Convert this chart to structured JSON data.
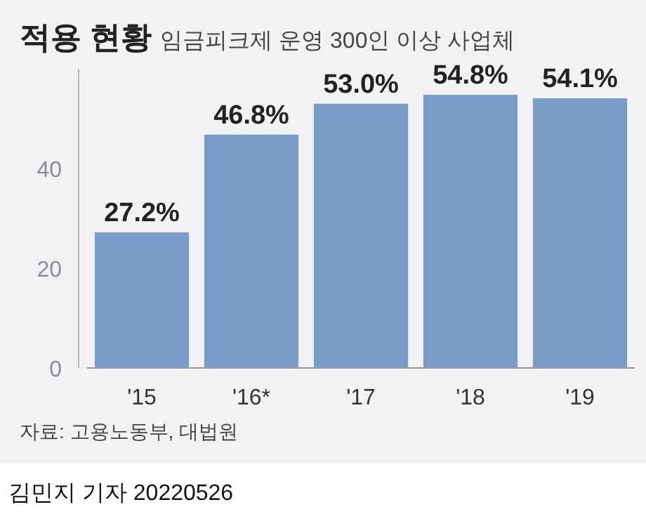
{
  "chart_data": {
    "type": "bar",
    "title": "적용 현황",
    "subtitle": "임금피크제 운영 300인 이상 사업체",
    "categories": [
      "'15",
      "'16*",
      "'17",
      "'18",
      "'19"
    ],
    "values": [
      27.2,
      46.8,
      53.0,
      54.8,
      54.1
    ],
    "value_labels": [
      "27.2%",
      "46.8%",
      "53.0%",
      "54.8%",
      "54.1%"
    ],
    "color": "#7b9bc9",
    "ylim": [
      0,
      60
    ],
    "yticks": [
      0,
      20,
      40
    ],
    "annotations": [
      "자료: 고용노동부, 대법원",
      "김민지 기자  20220526"
    ]
  }
}
